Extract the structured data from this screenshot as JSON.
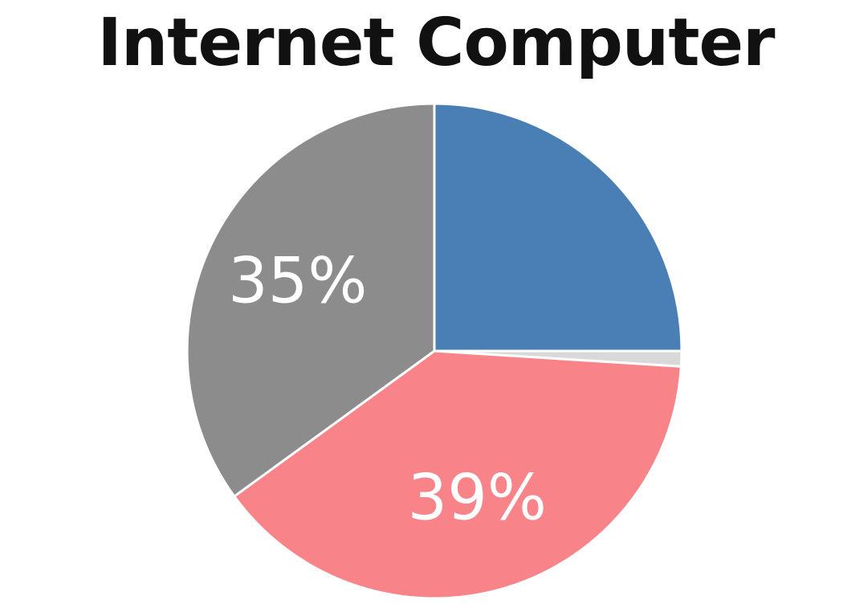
{
  "chart_data": {
    "type": "pie",
    "title": "Internet Computer",
    "slices": [
      {
        "value": 25,
        "color": "#4a7fb5",
        "label": ""
      },
      {
        "value": 1,
        "color": "#d9d9d9",
        "label": ""
      },
      {
        "value": 39,
        "color": "#f88388",
        "label": "39%"
      },
      {
        "value": 35,
        "color": "#8c8c8c",
        "label": "35%"
      }
    ],
    "start": "12 o'clock",
    "direction": "clockwise",
    "legend": "none"
  }
}
